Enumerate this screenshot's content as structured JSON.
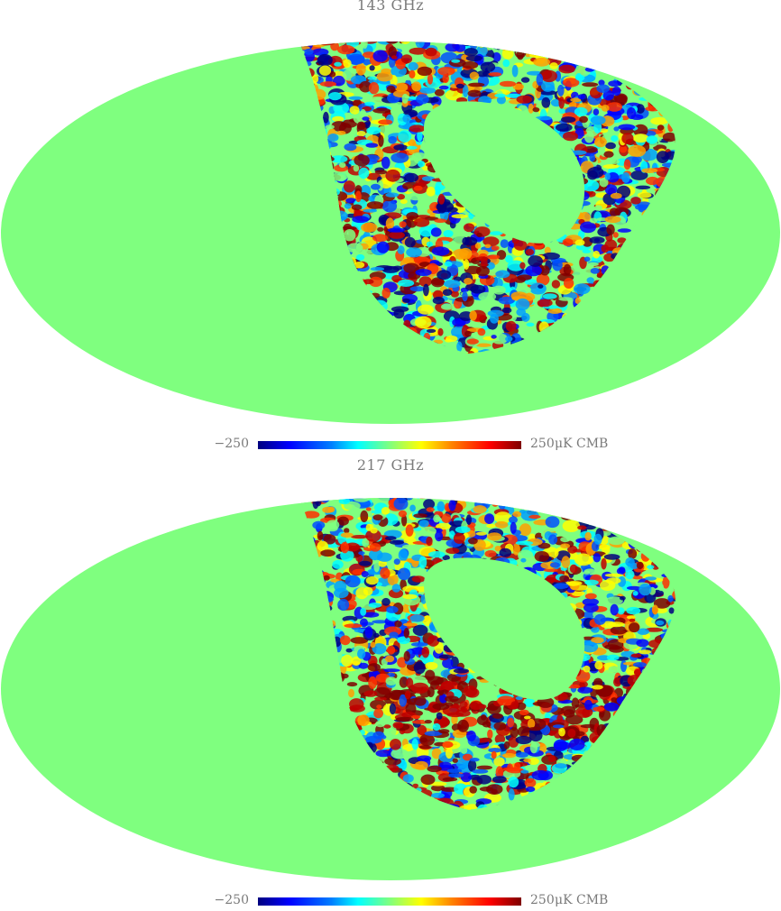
{
  "colors": {
    "masked": "#7fff7f",
    "cold": "#0000ff",
    "hot": "#ff0000",
    "text": "#7a7a7a"
  },
  "maps": [
    {
      "title": "143 GHz",
      "colorbar": {
        "min": "−250",
        "max": "250",
        "unit": "μK CMB"
      },
      "band_intensity": 0.35
    },
    {
      "title": "217 GHz",
      "colorbar": {
        "min": "−250",
        "max": "250",
        "unit": "μK CMB"
      },
      "band_intensity": 1.0
    }
  ]
}
